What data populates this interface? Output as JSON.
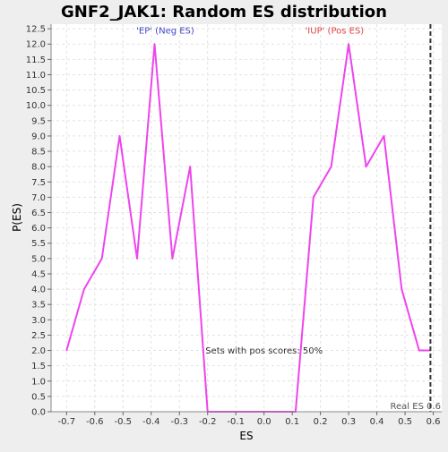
{
  "chart_data": {
    "type": "line",
    "title": "GNF2_JAK1: Random ES distribution",
    "xlabel": "ES",
    "ylabel": "P(ES)",
    "xlim": [
      -0.755,
      0.63
    ],
    "ylim": [
      0,
      12.65
    ],
    "x_ticks": [
      -0.7,
      -0.6,
      -0.5,
      -0.4,
      -0.3,
      -0.2,
      -0.1,
      0.0,
      0.1,
      0.2,
      0.3,
      0.4,
      0.5,
      0.6
    ],
    "y_ticks": [
      0.0,
      0.5,
      1.0,
      1.5,
      2.0,
      2.5,
      3.0,
      3.5,
      4.0,
      4.5,
      5.0,
      5.5,
      6.0,
      6.5,
      7.0,
      7.5,
      8.0,
      8.5,
      9.0,
      9.5,
      10.0,
      10.5,
      11.0,
      11.5,
      12.0,
      12.5
    ],
    "grid": true,
    "series": [
      {
        "color": "#ee44ee",
        "x": [
          -0.7,
          -0.638,
          -0.575,
          -0.512,
          -0.45,
          -0.388,
          -0.325,
          -0.262,
          -0.2,
          -0.138,
          -0.075,
          -0.012,
          0.05,
          0.112,
          0.175,
          0.238,
          0.3,
          0.362,
          0.425,
          0.488,
          0.55,
          0.59
        ],
        "y": [
          2.0,
          4.0,
          5.0,
          9.0,
          5.0,
          12.0,
          5.0,
          8.0,
          0.0,
          0.0,
          0.0,
          0.0,
          0.0,
          0.0,
          7.0,
          8.0,
          12.0,
          8.0,
          9.0,
          4.0,
          2.0,
          2.0
        ]
      }
    ],
    "real_es": {
      "x": 0.59,
      "label": "Real ES 0.6",
      "color": "#333333"
    },
    "annotations": [
      {
        "text": "'EP' (Neg ES)",
        "x": -0.35,
        "y": 12.35,
        "color": "#4444cc"
      },
      {
        "text": "'IUP' (Pos ES)",
        "x": 0.25,
        "y": 12.35,
        "color": "#dd4444"
      },
      {
        "text": "Sets with pos scores: 50%",
        "x": 0.0,
        "y": 1.9,
        "color": "#333333"
      }
    ]
  }
}
